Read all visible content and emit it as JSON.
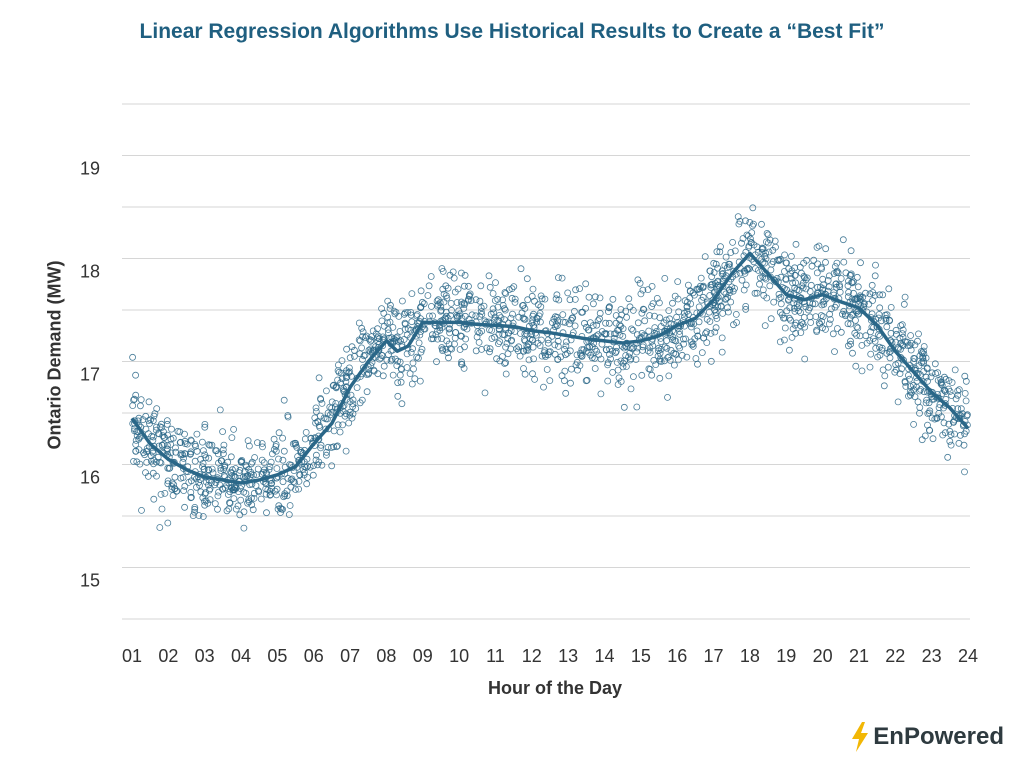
{
  "page": {
    "title": "Linear Regression Algorithms Use Historical Results to Create a “Best Fit”",
    "logo_text": "EnPowered"
  },
  "colors": {
    "title": "#1f5f80",
    "series": "#2a6788",
    "grid": "#d6d6d6",
    "axis_text": "#333333",
    "logo_bolt": "#f2b705",
    "logo_text": "#2e3a3f"
  },
  "chart_data": {
    "type": "scatter",
    "xlabel": "Hour of the Day",
    "ylabel": "Ontario Demand (MW)",
    "x_tick_labels": [
      "01",
      "02",
      "03",
      "04",
      "05",
      "06",
      "07",
      "08",
      "09",
      "10",
      "11",
      "12",
      "13",
      "14",
      "15",
      "16",
      "17",
      "18",
      "19",
      "20",
      "21",
      "22",
      "23",
      "24"
    ],
    "y_tick_labels": [
      "15",
      "16",
      "17",
      "18",
      "19"
    ],
    "ylim": [
      14.5,
      19.2
    ],
    "xlim": [
      1,
      24
    ],
    "grid": true,
    "legend": "none",
    "series": [
      {
        "kind": "best-fit-line",
        "x": [
          1,
          1.5,
          2,
          2.5,
          3,
          3.5,
          4,
          4.5,
          5,
          5.5,
          6,
          6.5,
          7,
          7.5,
          8,
          8.3,
          8.6,
          9,
          10,
          10.5,
          11,
          11.5,
          12,
          12.5,
          13,
          13.5,
          14,
          14.5,
          15,
          15.5,
          16,
          16.5,
          17,
          17.5,
          18,
          18.5,
          19,
          19.5,
          20,
          20.5,
          21,
          21.5,
          22,
          22.5,
          23,
          23.5,
          24
        ],
        "y": [
          16.45,
          16.2,
          16.05,
          15.95,
          15.88,
          15.85,
          15.82,
          15.85,
          15.9,
          15.98,
          16.2,
          16.4,
          16.75,
          17.0,
          17.2,
          17.1,
          17.15,
          17.38,
          17.38,
          17.36,
          17.35,
          17.34,
          17.3,
          17.28,
          17.25,
          17.22,
          17.2,
          17.18,
          17.2,
          17.25,
          17.35,
          17.42,
          17.6,
          17.85,
          18.05,
          17.85,
          17.65,
          17.6,
          17.65,
          17.58,
          17.52,
          17.35,
          17.1,
          16.9,
          16.7,
          16.55,
          16.35
        ]
      },
      {
        "kind": "observations",
        "points_per_hour_step": 90,
        "spread": 0.22
      }
    ]
  }
}
